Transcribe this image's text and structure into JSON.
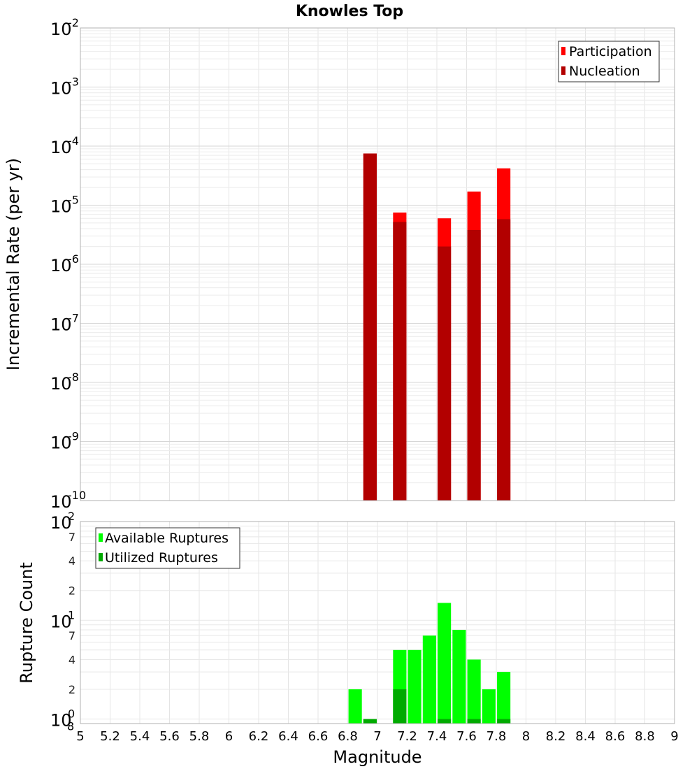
{
  "chart_data": [
    {
      "type": "bar",
      "title": "Knowles Top",
      "xlabel": "",
      "ylabel": "Incremental Rate (per yr)",
      "yscale": "log",
      "ylim": [
        1e-10,
        0.01
      ],
      "xlim": [
        5,
        9
      ],
      "y_ticks": [
        {
          "base": "10",
          "exp": "-10"
        },
        {
          "base": "10",
          "exp": "-9"
        },
        {
          "base": "10",
          "exp": "-8"
        },
        {
          "base": "10",
          "exp": "-7"
        },
        {
          "base": "10",
          "exp": "-6"
        },
        {
          "base": "10",
          "exp": "-5"
        },
        {
          "base": "10",
          "exp": "-4"
        },
        {
          "base": "10",
          "exp": "-3"
        },
        {
          "base": "10",
          "exp": "-2"
        }
      ],
      "bar_width": 0.09,
      "legend_position": "top-right",
      "series": [
        {
          "name": "Participation",
          "color": "#ff0000",
          "x": [
            6.95,
            7.15,
            7.45,
            7.65,
            7.85
          ],
          "values": [
            7.5e-05,
            7.5e-06,
            6e-06,
            1.7e-05,
            4.2e-05
          ]
        },
        {
          "name": "Nucleation",
          "color": "#b20000",
          "x": [
            6.95,
            7.15,
            7.45,
            7.65,
            7.85
          ],
          "values": [
            7.5e-05,
            5.2e-06,
            2e-06,
            3.8e-06,
            5.8e-06
          ]
        }
      ]
    },
    {
      "type": "bar",
      "title": "",
      "xlabel": "Magnitude",
      "ylabel": "Rupture Count",
      "yscale": "log",
      "ylim": [
        0.9,
        100
      ],
      "xlim": [
        5,
        9
      ],
      "x_ticks": [
        "5",
        "5.2",
        "5.4",
        "5.6",
        "5.8",
        "6",
        "6.2",
        "6.4",
        "6.6",
        "6.8",
        "7",
        "7.2",
        "7.4",
        "7.6",
        "7.8",
        "8",
        "8.2",
        "8.4",
        "8.6",
        "8.8",
        "9"
      ],
      "y_major_ticks": [
        {
          "base": "10",
          "exp": "0",
          "sub": "8"
        },
        {
          "base": "10",
          "exp": "1"
        },
        {
          "base": "10",
          "exp": "2"
        }
      ],
      "y_minor_tick_labels": [
        "2",
        "4",
        "7",
        "2",
        "4",
        "7"
      ],
      "bar_width": 0.09,
      "legend_position": "top-left",
      "series": [
        {
          "name": "Available Ruptures",
          "color": "#00ff00",
          "x": [
            6.85,
            6.95,
            7.15,
            7.25,
            7.35,
            7.45,
            7.55,
            7.65,
            7.75,
            7.85
          ],
          "values": [
            2,
            1,
            5,
            5,
            7,
            15,
            8,
            4,
            2,
            3
          ]
        },
        {
          "name": "Utilized Ruptures",
          "color": "#00aa00",
          "x": [
            6.95,
            7.15,
            7.45,
            7.65,
            7.85
          ],
          "values": [
            1,
            2,
            1,
            1,
            1
          ]
        }
      ]
    }
  ]
}
